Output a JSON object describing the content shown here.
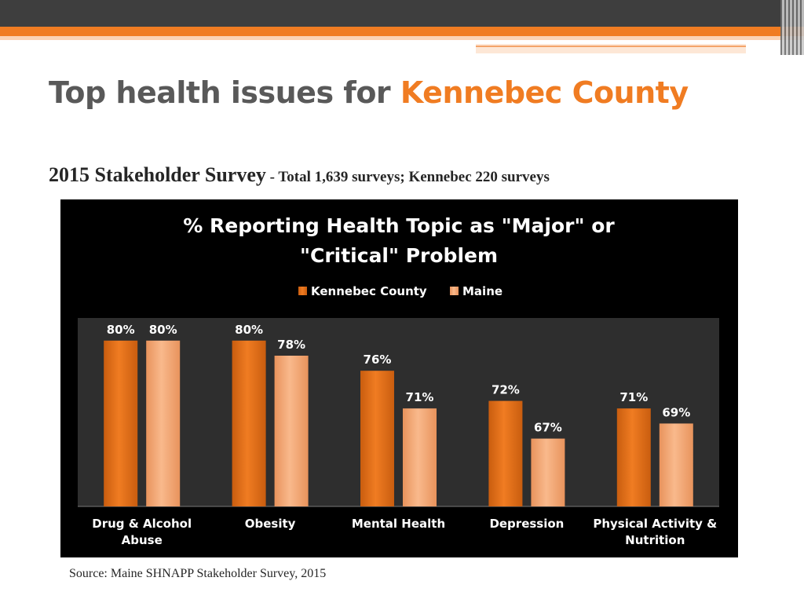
{
  "slide": {
    "title_prefix": "Top health issues for ",
    "title_highlight": "Kennebec County",
    "subtitle_main": "2015 Stakeholder Survey",
    "subtitle_detail": " - Total 1,639 surveys; Kennebec 220 surveys",
    "source": "Source: Maine SHNAPP Stakeholder Survey, 2015"
  },
  "colors": {
    "kennebec": "#f07c22",
    "maine": "#f9b98c",
    "accent": "#f07c22",
    "title_gray": "#595959",
    "plot_bg": "#2e2e2e"
  },
  "chart_data": {
    "type": "bar",
    "title_line1": "% Reporting Health Topic as \"Major\" or",
    "title_line2": "\"Critical\" Problem",
    "legend_position": "top",
    "categories": [
      [
        "Drug & Alcohol",
        "Abuse"
      ],
      [
        "Obesity"
      ],
      [
        "Mental Health"
      ],
      [
        "Depression"
      ],
      [
        "Physical Activity &",
        "Nutrition"
      ]
    ],
    "series": [
      {
        "name": "Kennebec County",
        "values": [
          80,
          80,
          76,
          72,
          71
        ],
        "labels": [
          "80%",
          "80%",
          "76%",
          "72%",
          "71%"
        ]
      },
      {
        "name": "Maine",
        "values": [
          80,
          78,
          71,
          67,
          69
        ],
        "labels": [
          "80%",
          "78%",
          "71%",
          "67%",
          "69%"
        ]
      }
    ],
    "ylim": [
      58,
      83
    ],
    "grid": false
  }
}
